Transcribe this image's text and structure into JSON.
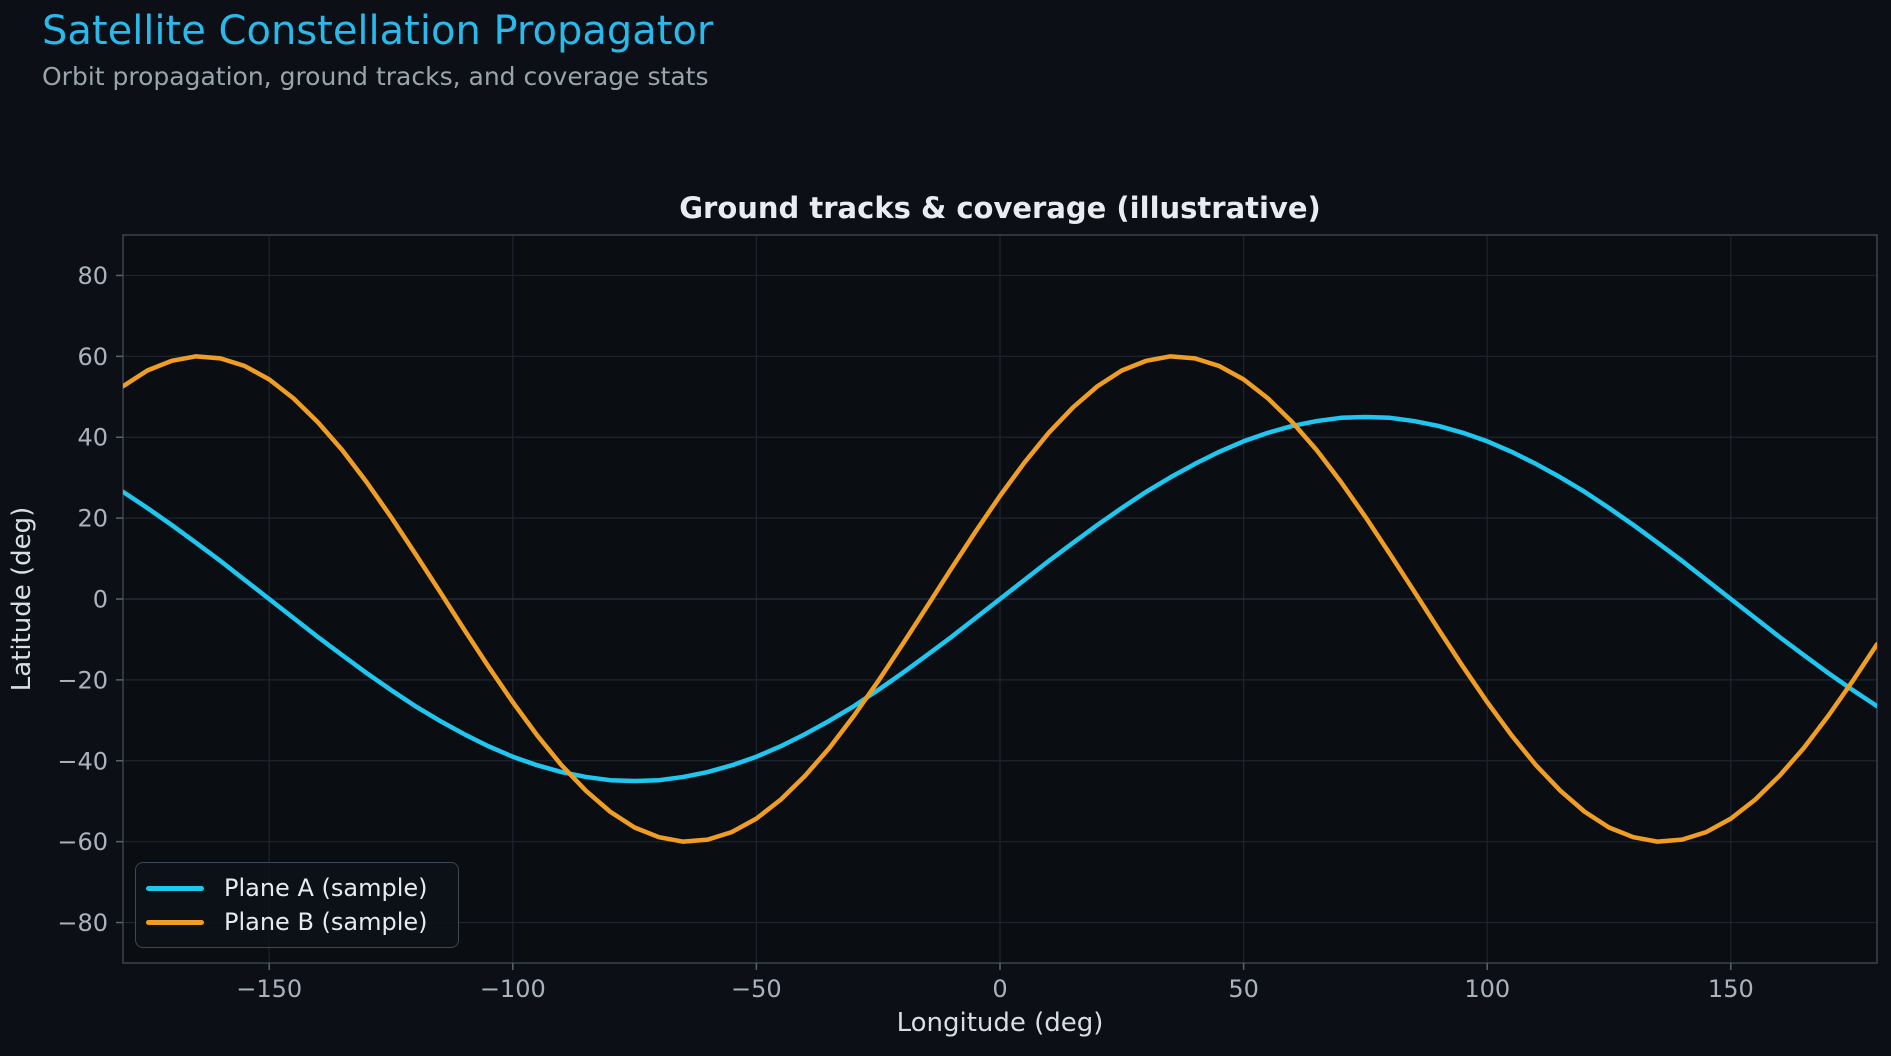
{
  "header": {
    "title": "Satellite Constellation Propagator",
    "subtitle": "Orbit propagation, ground tracks, and coverage stats"
  },
  "theme": {
    "background": "#0c1016",
    "plot_background": "#0a0e13",
    "title_accent": "#29b9ea",
    "subtitle_color": "#9aa4ad",
    "chart_title_color": "#e9edf2",
    "grid_color": "#1e2530",
    "grid_zero_color": "#2a3340",
    "spine_color": "#39424e",
    "tick_mark_color": "#59626c",
    "tick_label_color": "#aab3bd",
    "axis_label_color": "#d8dee5",
    "legend_border": "#3d4854",
    "legend_text": "#e6ebf0"
  },
  "chart_data": {
    "type": "line",
    "title": "Ground tracks & coverage (illustrative)",
    "xlabel": "Longitude (deg)",
    "ylabel": "Latitude (deg)",
    "xlim": [
      -180,
      180
    ],
    "ylim": [
      -90,
      90
    ],
    "x_ticks": [
      -150,
      -100,
      -50,
      0,
      50,
      100,
      150
    ],
    "y_ticks": [
      -80,
      -60,
      -40,
      -20,
      0,
      20,
      40,
      60,
      80
    ],
    "grid": true,
    "legend_position": "lower left",
    "x_start": -180,
    "x_step": 5,
    "series": [
      {
        "name": "Plane A (sample)",
        "color": "#1fc7f0",
        "values": [
          26.5,
          22.5,
          18.3,
          13.9,
          9.4,
          4.7,
          0.0,
          -4.7,
          -9.4,
          -13.9,
          -18.3,
          -22.5,
          -26.5,
          -30.1,
          -33.4,
          -36.4,
          -39.0,
          -41.1,
          -42.8,
          -44.0,
          -44.8,
          -45.0,
          -44.8,
          -44.0,
          -42.8,
          -41.1,
          -39.0,
          -36.4,
          -33.4,
          -30.1,
          -26.5,
          -22.5,
          -18.3,
          -13.9,
          -9.4,
          -4.7,
          0.0,
          4.7,
          9.4,
          13.9,
          18.3,
          22.5,
          26.5,
          30.1,
          33.4,
          36.4,
          39.0,
          41.1,
          42.8,
          44.0,
          44.8,
          45.0,
          44.8,
          44.0,
          42.8,
          41.1,
          39.0,
          36.4,
          33.4,
          30.1,
          26.5,
          22.5,
          18.3,
          13.9,
          9.4,
          4.7,
          0.0,
          -4.7,
          -9.4,
          -13.9,
          -18.3,
          -22.5,
          -26.5
        ]
      },
      {
        "name": "Plane B (sample)",
        "color": "#f09e23",
        "values": [
          52.6,
          56.5,
          58.9,
          60.0,
          59.5,
          57.6,
          54.3,
          49.6,
          43.7,
          36.8,
          28.9,
          20.3,
          11.2,
          1.9,
          -7.5,
          -16.7,
          -25.5,
          -33.7,
          -41.1,
          -47.4,
          -52.6,
          -56.5,
          -58.9,
          -60.0,
          -59.5,
          -57.6,
          -54.3,
          -49.6,
          -43.7,
          -36.8,
          -28.9,
          -20.3,
          -11.2,
          -1.9,
          7.5,
          16.7,
          25.5,
          33.7,
          41.1,
          47.4,
          52.6,
          56.5,
          58.9,
          60.0,
          59.5,
          57.6,
          54.3,
          49.6,
          43.7,
          36.8,
          28.9,
          20.3,
          11.2,
          1.9,
          -7.5,
          -16.7,
          -25.5,
          -33.7,
          -41.1,
          -47.4,
          -52.6,
          -56.5,
          -58.9,
          -60.0,
          -59.5,
          -57.6,
          -54.3,
          -49.6,
          -43.7,
          -36.8,
          -28.9,
          -20.3,
          -11.2
        ]
      }
    ]
  }
}
